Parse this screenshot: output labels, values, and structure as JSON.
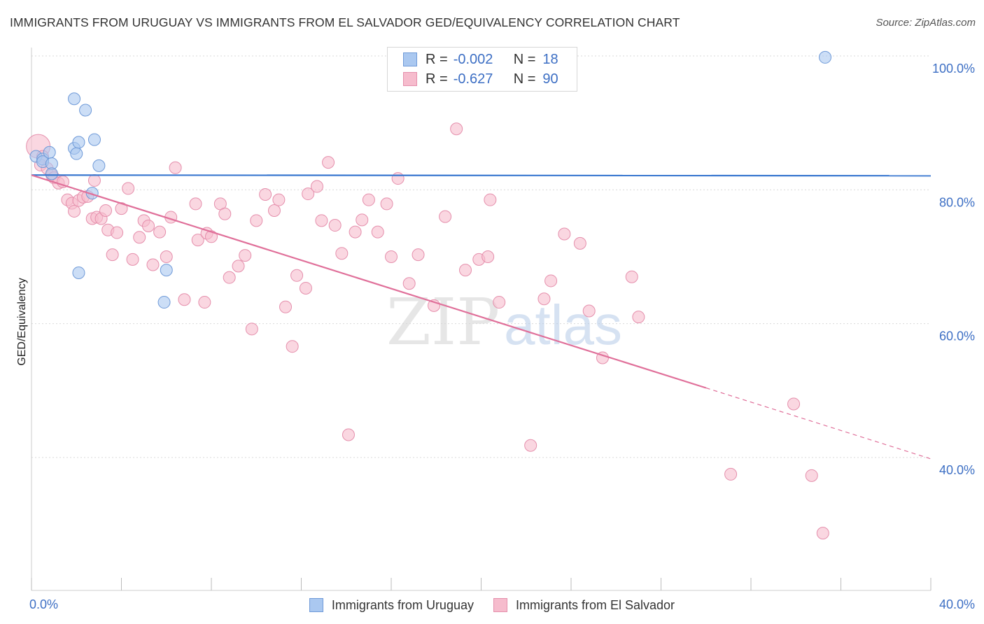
{
  "title": "IMMIGRANTS FROM URUGUAY VS IMMIGRANTS FROM EL SALVADOR GED/EQUIVALENCY CORRELATION CHART",
  "source": "Source: ZipAtlas.com",
  "watermark": {
    "zip": "ZIP",
    "atlas": "atlas"
  },
  "colors": {
    "uruguay_fill": "#aac8f0",
    "uruguay_stroke": "#6f9ad8",
    "uruguay_line": "#3a78d0",
    "elsalvador_fill": "#f6bccd",
    "elsalvador_stroke": "#e58fac",
    "elsalvador_line": "#e0709a",
    "grid": "#d9d9d9",
    "tick_text": "#3d6fc4"
  },
  "legend": {
    "rows": [
      {
        "r_label": "R =",
        "r_value": "-0.002",
        "n_label": "N =",
        "n_value": "18"
      },
      {
        "r_label": "R =",
        "r_value": "-0.627",
        "n_label": "N =",
        "n_value": "90"
      }
    ]
  },
  "chart_data": {
    "type": "scatter",
    "title": "IMMIGRANTS FROM URUGUAY VS IMMIGRANTS FROM EL SALVADOR GED/EQUIVALENCY CORRELATION CHART",
    "xlabel": "",
    "ylabel": "GED/Equivalency",
    "xlim": [
      0,
      40
    ],
    "ylim": [
      22,
      102
    ],
    "x_tick_labels": [
      "0.0%",
      "40.0%"
    ],
    "y_ticks": [
      40,
      60,
      80,
      100
    ],
    "y_tick_labels": [
      "40.0%",
      "60.0%",
      "80.0%",
      "100.0%"
    ],
    "grid": true,
    "legend_position": "bottom",
    "series": [
      {
        "name": "Immigrants from Uruguay",
        "points": [
          [
            0.2,
            85.0
          ],
          [
            0.5,
            84.6
          ],
          [
            0.5,
            84.2
          ],
          [
            0.8,
            85.6
          ],
          [
            0.9,
            83.9
          ],
          [
            0.9,
            82.4
          ],
          [
            1.9,
            93.6
          ],
          [
            2.4,
            91.9
          ],
          [
            1.9,
            86.2
          ],
          [
            2.0,
            85.4
          ],
          [
            2.1,
            87.1
          ],
          [
            2.8,
            87.5
          ],
          [
            3.0,
            83.6
          ],
          [
            2.7,
            79.5
          ],
          [
            2.1,
            67.6
          ],
          [
            6.0,
            68.0
          ],
          [
            5.9,
            63.2
          ],
          [
            35.3,
            99.8
          ]
        ],
        "trend": {
          "x": [
            0,
            40
          ],
          "y": [
            82.2,
            82.1
          ]
        }
      },
      {
        "name": "Immigrants from El Salvador",
        "points": [
          [
            0.3,
            86.5
          ],
          [
            0.5,
            85.0
          ],
          [
            0.4,
            83.7
          ],
          [
            0.7,
            83.2
          ],
          [
            0.9,
            82.2
          ],
          [
            1.0,
            81.8
          ],
          [
            1.2,
            81.0
          ],
          [
            1.4,
            81.2
          ],
          [
            1.6,
            78.5
          ],
          [
            1.8,
            78.0
          ],
          [
            1.9,
            76.8
          ],
          [
            2.1,
            78.4
          ],
          [
            2.3,
            78.9
          ],
          [
            2.5,
            79.0
          ],
          [
            2.7,
            75.7
          ],
          [
            2.8,
            81.4
          ],
          [
            2.9,
            75.9
          ],
          [
            3.1,
            75.7
          ],
          [
            3.3,
            76.9
          ],
          [
            3.4,
            74.0
          ],
          [
            3.6,
            70.3
          ],
          [
            3.8,
            73.6
          ],
          [
            4.0,
            77.2
          ],
          [
            4.3,
            80.2
          ],
          [
            4.5,
            69.6
          ],
          [
            4.8,
            72.9
          ],
          [
            5.0,
            75.4
          ],
          [
            5.2,
            74.6
          ],
          [
            5.4,
            68.8
          ],
          [
            5.7,
            73.7
          ],
          [
            6.0,
            70.0
          ],
          [
            6.2,
            75.9
          ],
          [
            6.4,
            83.3
          ],
          [
            6.8,
            63.6
          ],
          [
            7.3,
            77.9
          ],
          [
            7.4,
            72.5
          ],
          [
            7.7,
            63.2
          ],
          [
            7.8,
            73.5
          ],
          [
            8.0,
            73.0
          ],
          [
            8.4,
            77.9
          ],
          [
            8.6,
            76.4
          ],
          [
            8.8,
            66.9
          ],
          [
            9.2,
            68.6
          ],
          [
            9.5,
            70.2
          ],
          [
            9.8,
            59.2
          ],
          [
            10.0,
            75.4
          ],
          [
            10.4,
            79.3
          ],
          [
            10.8,
            76.9
          ],
          [
            11.0,
            78.5
          ],
          [
            11.3,
            62.5
          ],
          [
            11.6,
            56.6
          ],
          [
            11.8,
            67.2
          ],
          [
            12.2,
            65.3
          ],
          [
            12.3,
            79.4
          ],
          [
            12.7,
            80.5
          ],
          [
            12.9,
            75.4
          ],
          [
            13.2,
            84.1
          ],
          [
            13.5,
            74.7
          ],
          [
            13.8,
            70.5
          ],
          [
            14.1,
            43.4
          ],
          [
            14.4,
            73.7
          ],
          [
            14.7,
            75.5
          ],
          [
            15.0,
            78.5
          ],
          [
            15.4,
            73.7
          ],
          [
            15.8,
            77.9
          ],
          [
            16.0,
            70.0
          ],
          [
            16.3,
            81.7
          ],
          [
            16.8,
            66.0
          ],
          [
            17.2,
            70.3
          ],
          [
            17.9,
            62.7
          ],
          [
            18.4,
            76.0
          ],
          [
            18.9,
            89.1
          ],
          [
            19.3,
            68.0
          ],
          [
            19.9,
            69.6
          ],
          [
            20.3,
            70.0
          ],
          [
            20.4,
            78.5
          ],
          [
            20.8,
            63.2
          ],
          [
            22.2,
            41.8
          ],
          [
            22.8,
            63.7
          ],
          [
            23.1,
            66.4
          ],
          [
            23.7,
            73.4
          ],
          [
            24.4,
            72.0
          ],
          [
            24.8,
            61.9
          ],
          [
            25.4,
            54.9
          ],
          [
            26.7,
            67.0
          ],
          [
            27.0,
            61.0
          ],
          [
            31.1,
            37.5
          ],
          [
            33.9,
            48.0
          ],
          [
            34.7,
            37.3
          ],
          [
            35.2,
            28.7
          ]
        ],
        "trend": {
          "x": [
            0,
            30
          ],
          "y": [
            82.2,
            50.4
          ]
        },
        "trend_dashed": {
          "x": [
            30,
            40
          ],
          "y": [
            50.4,
            39.8
          ]
        }
      }
    ]
  }
}
